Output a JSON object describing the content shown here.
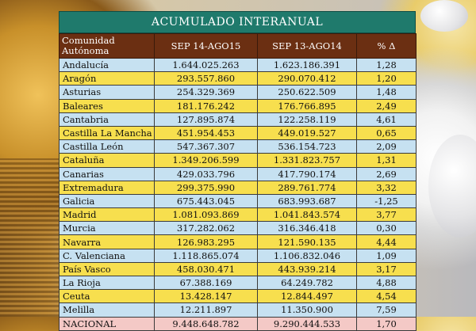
{
  "table": {
    "title": "ACUMULADO INTERANUAL",
    "headers": [
      "Comunidad\nAutónoma",
      "SEP 14-AGO15",
      "SEP 13-AGO14",
      "% Δ"
    ],
    "header_community_line1": "Comunidad",
    "header_community_line2": "Autónoma",
    "rows": [
      {
        "name": "Andalucía",
        "v1": "1.644.025.263",
        "v2": "1.623.186.391",
        "pct": "1,28"
      },
      {
        "name": "Aragón",
        "v1": "293.557.860",
        "v2": "290.070.412",
        "pct": "1,20"
      },
      {
        "name": "Asturias",
        "v1": "254.329.369",
        "v2": "250.622.509",
        "pct": "1,48"
      },
      {
        "name": "Baleares",
        "v1": "181.176.242",
        "v2": "176.766.895",
        "pct": "2,49"
      },
      {
        "name": "Cantabria",
        "v1": "127.895.874",
        "v2": "122.258.119",
        "pct": "4,61"
      },
      {
        "name": "Castilla La Mancha",
        "v1": "451.954.453",
        "v2": "449.019.527",
        "pct": "0,65"
      },
      {
        "name": "Castilla León",
        "v1": "547.367.307",
        "v2": "536.154.723",
        "pct": "2,09"
      },
      {
        "name": "Cataluña",
        "v1": "1.349.206.599",
        "v2": "1.331.823.757",
        "pct": "1,31"
      },
      {
        "name": "Canarias",
        "v1": "429.033.796",
        "v2": "417.790.174",
        "pct": "2,69"
      },
      {
        "name": "Extremadura",
        "v1": "299.375.990",
        "v2": "289.761.774",
        "pct": "3,32"
      },
      {
        "name": "Galicia",
        "v1": "675.443.045",
        "v2": "683.993.687",
        "pct": "-1,25"
      },
      {
        "name": "Madrid",
        "v1": "1.081.093.869",
        "v2": "1.041.843.574",
        "pct": "3,77"
      },
      {
        "name": "Murcia",
        "v1": "317.282.062",
        "v2": "316.346.418",
        "pct": "0,30"
      },
      {
        "name": "Navarra",
        "v1": "126.983.295",
        "v2": "121.590.135",
        "pct": "4,44"
      },
      {
        "name": "C. Valenciana",
        "v1": "1.118.865.074",
        "v2": "1.106.832.046",
        "pct": "1,09"
      },
      {
        "name": "País Vasco",
        "v1": "458.030.471",
        "v2": "443.939.214",
        "pct": "3,17"
      },
      {
        "name": "La Rioja",
        "v1": "67.388.169",
        "v2": "64.249.782",
        "pct": "4,88"
      },
      {
        "name": "Ceuta",
        "v1": "13.428.147",
        "v2": "12.844.497",
        "pct": "4,54"
      },
      {
        "name": "Melilla",
        "v1": "12.211.897",
        "v2": "11.350.900",
        "pct": "7,59"
      }
    ],
    "total": {
      "name": "NACIONAL",
      "v1": "9.448.648.782",
      "v2": "9.290.444.533",
      "pct": "1,70"
    }
  },
  "colors": {
    "title_bar": "#1f7a6c",
    "header": "#6b2f12",
    "row_blue": "#c6e1f1",
    "row_yellow": "#f7df4e",
    "total_row": "#f4c9c6"
  }
}
